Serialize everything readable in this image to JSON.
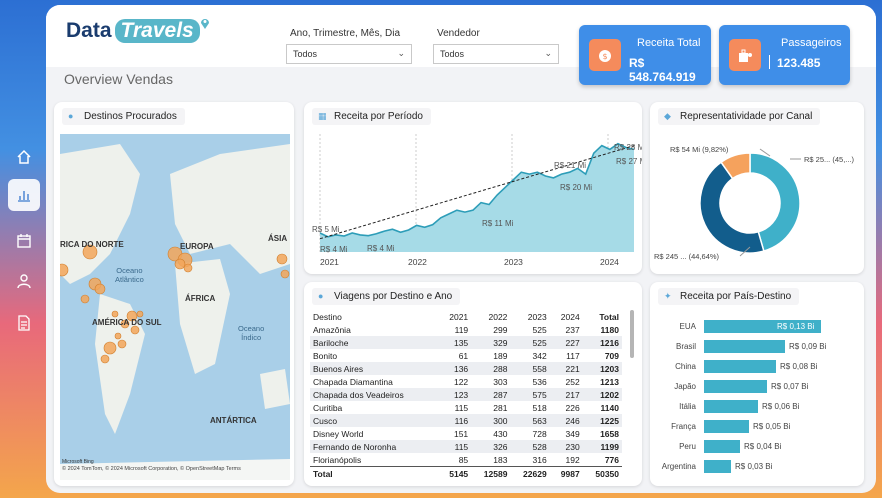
{
  "app": {
    "logo_part1": "Data",
    "logo_part2": "Travels",
    "page_title": "Overview Vendas"
  },
  "filters": {
    "period": {
      "label": "Ano, Trimestre, Mês, Dia",
      "value": "Todos"
    },
    "seller": {
      "label": "Vendedor",
      "value": "Todos"
    }
  },
  "kpis": {
    "revenue": {
      "title": "Receita Total",
      "value": "R$ 548.764.919",
      "icon": "money-bag-icon"
    },
    "passengers": {
      "title": "Passageiros",
      "value": "123.485",
      "icon": "luggage-icon"
    }
  },
  "sidebar": {
    "items": [
      {
        "name": "home",
        "icon": "home-icon"
      },
      {
        "name": "chart",
        "icon": "bar-chart-icon",
        "active": true
      },
      {
        "name": "calendar",
        "icon": "calendar-icon"
      },
      {
        "name": "user",
        "icon": "user-icon"
      },
      {
        "name": "report",
        "icon": "document-icon"
      }
    ]
  },
  "map_card": {
    "title": "Destinos Procurados",
    "labels": {
      "north_america": "RICA DO NORTE",
      "europe": "EUROPA",
      "asia": "ÁSIA",
      "atlantic": "Oceano\nAtlântico",
      "africa": "ÁFRICA",
      "south_america": "AMÉRICA DO SUL",
      "indian": "Oceano\nÍndico",
      "antarctica": "ANTÁRTICA"
    },
    "attribution": "© 2024 TomTom, © 2024 Microsoft Corporation, © OpenStreetMap  Terms",
    "bing": "Microsoft Bing"
  },
  "chart_data": [
    {
      "type": "area",
      "title": "Receita por Período",
      "x_ticks": [
        "2021",
        "2022",
        "2023",
        "2024"
      ],
      "annotations": [
        "R$ 5 Mi",
        "R$ 4 Mi",
        "R$ 4 Mi",
        "R$ 11 Mi",
        "R$ 21 Mi",
        "R$ 20 Mi",
        "R$ 28 Mi",
        "R$ 27 Mi"
      ],
      "trend": true,
      "series": [
        {
          "values": [
            5,
            4,
            4.5,
            4.2,
            5,
            4.5,
            4.3,
            4.8,
            5.5,
            6,
            5.2,
            5.8,
            7,
            6.5,
            7.2,
            9,
            10,
            11,
            10.5,
            11,
            13,
            12.5,
            15,
            17,
            19,
            21,
            20.5,
            21,
            20,
            19.5,
            20.5,
            21,
            22,
            20.5,
            26,
            28,
            27,
            28.5,
            27.5,
            27
          ]
        }
      ],
      "ylim": [
        0,
        30
      ]
    },
    {
      "type": "pie",
      "title": "Representatividade por Canal",
      "slices": [
        {
          "label": "R$ 25... (45,...)",
          "value": 45.54,
          "color": "#3fb0c9"
        },
        {
          "label": "R$ 245 ... (44,64%)",
          "value": 44.64,
          "color": "#125d8c"
        },
        {
          "label": "R$ 54 Mi (9,82%)",
          "value": 9.82,
          "color": "#f5a25d"
        }
      ]
    },
    {
      "type": "bar",
      "title": "Receita por País-Destino",
      "categories": [
        "EUA",
        "Brasil",
        "China",
        "Japão",
        "Itália",
        "França",
        "Peru",
        "Argentina"
      ],
      "values": [
        0.13,
        0.09,
        0.08,
        0.07,
        0.06,
        0.05,
        0.04,
        0.03
      ],
      "labels": [
        "R$ 0,13 Bi",
        "R$ 0,09 Bi",
        "R$ 0,08 Bi",
        "R$ 0,07 Bi",
        "R$ 0,06 Bi",
        "R$ 0,05 Bi",
        "R$ 0,04 Bi",
        "R$ 0,03 Bi"
      ],
      "xlim": [
        0,
        0.14
      ]
    }
  ],
  "table": {
    "title": "Viagens por Destino e Ano",
    "headers": [
      "Destino",
      "2021",
      "2022",
      "2023",
      "2024",
      "Total"
    ],
    "rows": [
      [
        "Amazônia",
        "119",
        "299",
        "525",
        "237",
        "1180"
      ],
      [
        "Bariloche",
        "135",
        "329",
        "525",
        "227",
        "1216"
      ],
      [
        "Bonito",
        "61",
        "189",
        "342",
        "117",
        "709"
      ],
      [
        "Buenos Aires",
        "136",
        "288",
        "558",
        "221",
        "1203"
      ],
      [
        "Chapada Diamantina",
        "122",
        "303",
        "536",
        "252",
        "1213"
      ],
      [
        "Chapada dos Veadeiros",
        "123",
        "287",
        "575",
        "217",
        "1202"
      ],
      [
        "Curitiba",
        "115",
        "281",
        "518",
        "226",
        "1140"
      ],
      [
        "Cusco",
        "116",
        "300",
        "563",
        "246",
        "1225"
      ],
      [
        "Disney World",
        "151",
        "430",
        "728",
        "349",
        "1658"
      ],
      [
        "Fernando de Noronha",
        "115",
        "326",
        "528",
        "230",
        "1199"
      ],
      [
        "Florianópolis",
        "85",
        "183",
        "316",
        "192",
        "776"
      ]
    ],
    "total": [
      "Total",
      "5145",
      "12589",
      "22629",
      "9987",
      "50350"
    ]
  },
  "colors": {
    "accent": "#3f8ee8",
    "teal": "#3fb0c9",
    "navy": "#125d8c",
    "orange": "#f5a25d"
  }
}
